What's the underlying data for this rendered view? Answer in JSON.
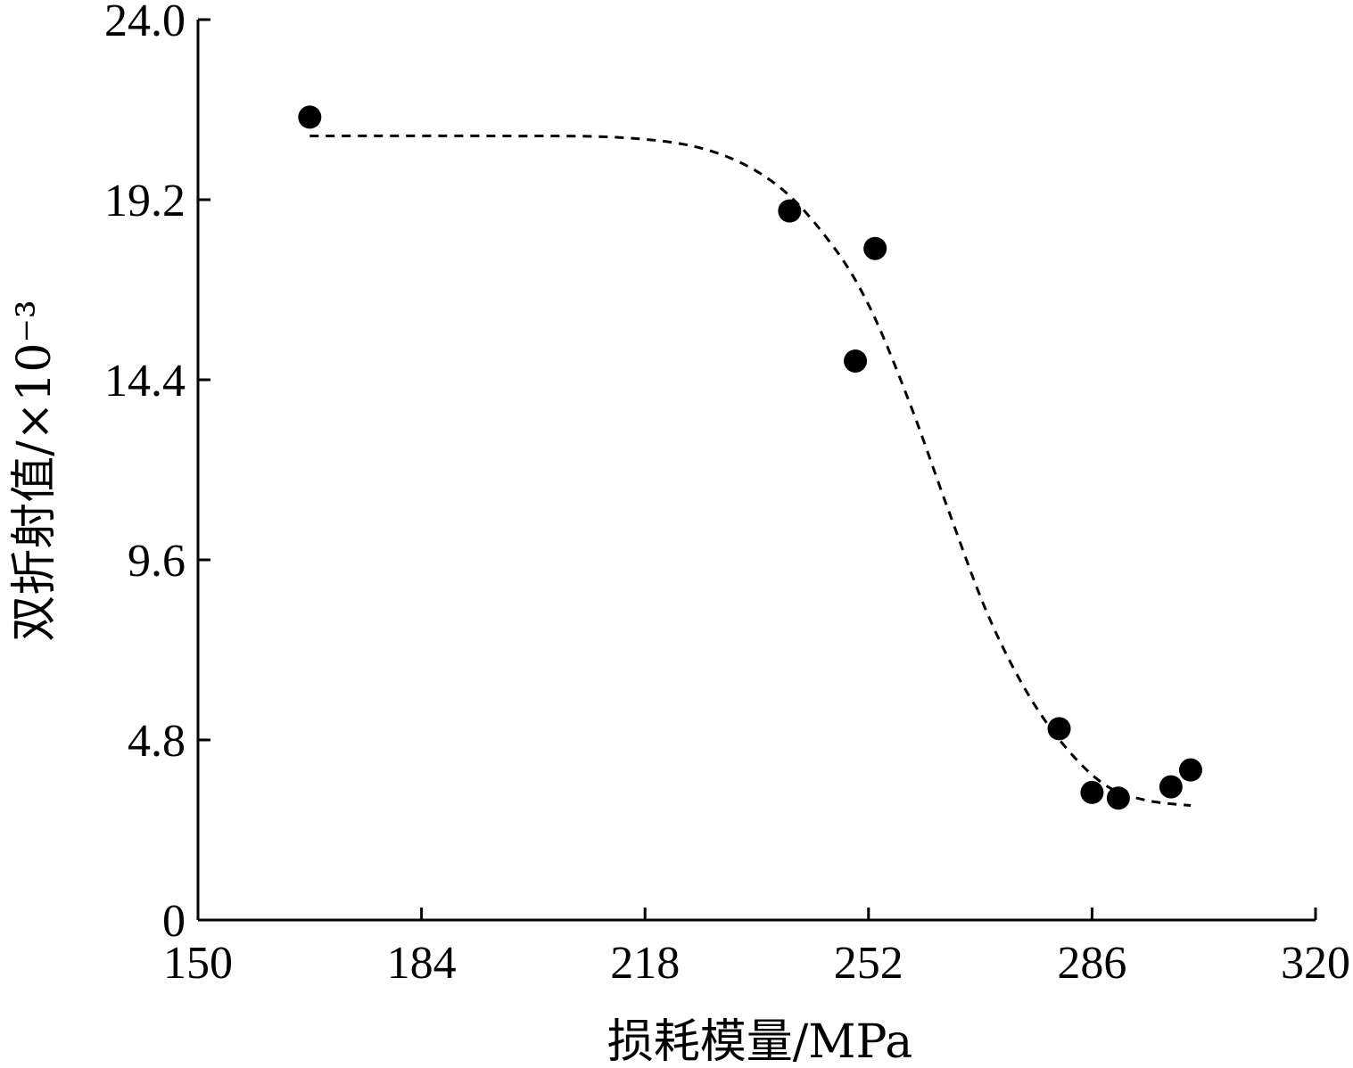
{
  "chart_data": {
    "type": "scatter",
    "title": "",
    "xlabel": "损耗模量/MPa",
    "ylabel": "双折射值/×10⁻³",
    "xlim": [
      150,
      320
    ],
    "ylim": [
      0,
      24.0
    ],
    "x_ticks": [
      "150",
      "184",
      "218",
      "252",
      "286",
      "320"
    ],
    "y_ticks": [
      "0",
      "4.8",
      "9.6",
      "14.4",
      "19.2",
      "24.0"
    ],
    "grid": false,
    "legend": "none",
    "series": [
      {
        "points": [
          {
            "x": 167,
            "y": 21.4
          },
          {
            "x": 240,
            "y": 18.9
          },
          {
            "x": 250,
            "y": 14.9
          },
          {
            "x": 253,
            "y": 17.9
          },
          {
            "x": 281,
            "y": 5.1
          },
          {
            "x": 286,
            "y": 3.4
          },
          {
            "x": 290,
            "y": 3.25
          },
          {
            "x": 298,
            "y": 3.55
          },
          {
            "x": 301,
            "y": 4.0
          }
        ]
      }
    ],
    "trendline": {
      "style": "dashed",
      "points": [
        {
          "x": 167,
          "y": 20.9
        },
        {
          "x": 195,
          "y": 20.9
        },
        {
          "x": 215,
          "y": 20.85
        },
        {
          "x": 228,
          "y": 20.5
        },
        {
          "x": 238,
          "y": 19.6
        },
        {
          "x": 246,
          "y": 18.1
        },
        {
          "x": 252,
          "y": 16.4
        },
        {
          "x": 258,
          "y": 13.9
        },
        {
          "x": 264,
          "y": 11.0
        },
        {
          "x": 270,
          "y": 8.2
        },
        {
          "x": 276,
          "y": 6.1
        },
        {
          "x": 282,
          "y": 4.6
        },
        {
          "x": 288,
          "y": 3.6
        },
        {
          "x": 294,
          "y": 3.2
        },
        {
          "x": 301,
          "y": 3.05
        }
      ]
    },
    "colors": {
      "points": "#000000",
      "trendline": "#000000",
      "axis": "#000000"
    }
  }
}
